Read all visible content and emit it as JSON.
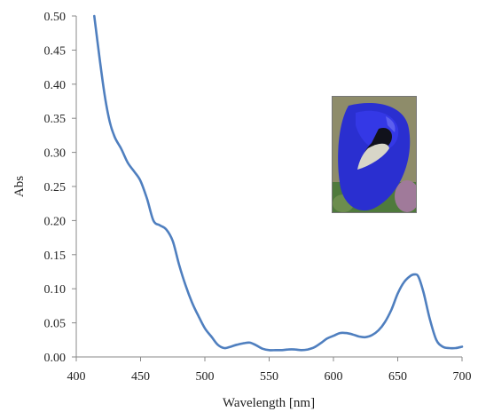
{
  "chart_data": {
    "type": "line",
    "xlabel": "Wavelength  [nm]",
    "ylabel": "Abs",
    "xlim": [
      400,
      700
    ],
    "ylim": [
      0,
      0.5
    ],
    "xticks": [
      "400",
      "450",
      "500",
      "550",
      "600",
      "650",
      "700"
    ],
    "yticks": [
      "0.00",
      "0.05",
      "0.10",
      "0.15",
      "0.20",
      "0.25",
      "0.30",
      "0.35",
      "0.40",
      "0.45",
      "0.50"
    ],
    "grid": false,
    "line_color": "#4f7fbf",
    "series": [
      {
        "x": [
          414,
          418,
          422,
          426,
          430,
          435,
          440,
          445,
          450,
          455,
          460,
          465,
          470,
          475,
          480,
          485,
          490,
          495,
          500,
          505,
          510,
          515,
          520,
          525,
          530,
          535,
          540,
          545,
          550,
          555,
          560,
          565,
          570,
          575,
          580,
          585,
          590,
          595,
          600,
          605,
          610,
          615,
          620,
          625,
          630,
          635,
          640,
          645,
          650,
          655,
          660,
          663,
          666,
          670,
          675,
          680,
          685,
          690,
          695,
          700
        ],
        "y": [
          0.5,
          0.44,
          0.385,
          0.345,
          0.322,
          0.305,
          0.285,
          0.272,
          0.258,
          0.232,
          0.2,
          0.193,
          0.187,
          0.17,
          0.135,
          0.105,
          0.08,
          0.06,
          0.042,
          0.03,
          0.018,
          0.013,
          0.015,
          0.018,
          0.02,
          0.021,
          0.017,
          0.012,
          0.01,
          0.01,
          0.01,
          0.011,
          0.011,
          0.01,
          0.011,
          0.014,
          0.02,
          0.027,
          0.031,
          0.035,
          0.035,
          0.033,
          0.03,
          0.029,
          0.032,
          0.039,
          0.051,
          0.069,
          0.093,
          0.11,
          0.119,
          0.121,
          0.118,
          0.095,
          0.055,
          0.025,
          0.015,
          0.013,
          0.013,
          0.015
        ]
      }
    ]
  },
  "inset": {
    "kind": "photo",
    "subject": "blue-flower-photo"
  }
}
